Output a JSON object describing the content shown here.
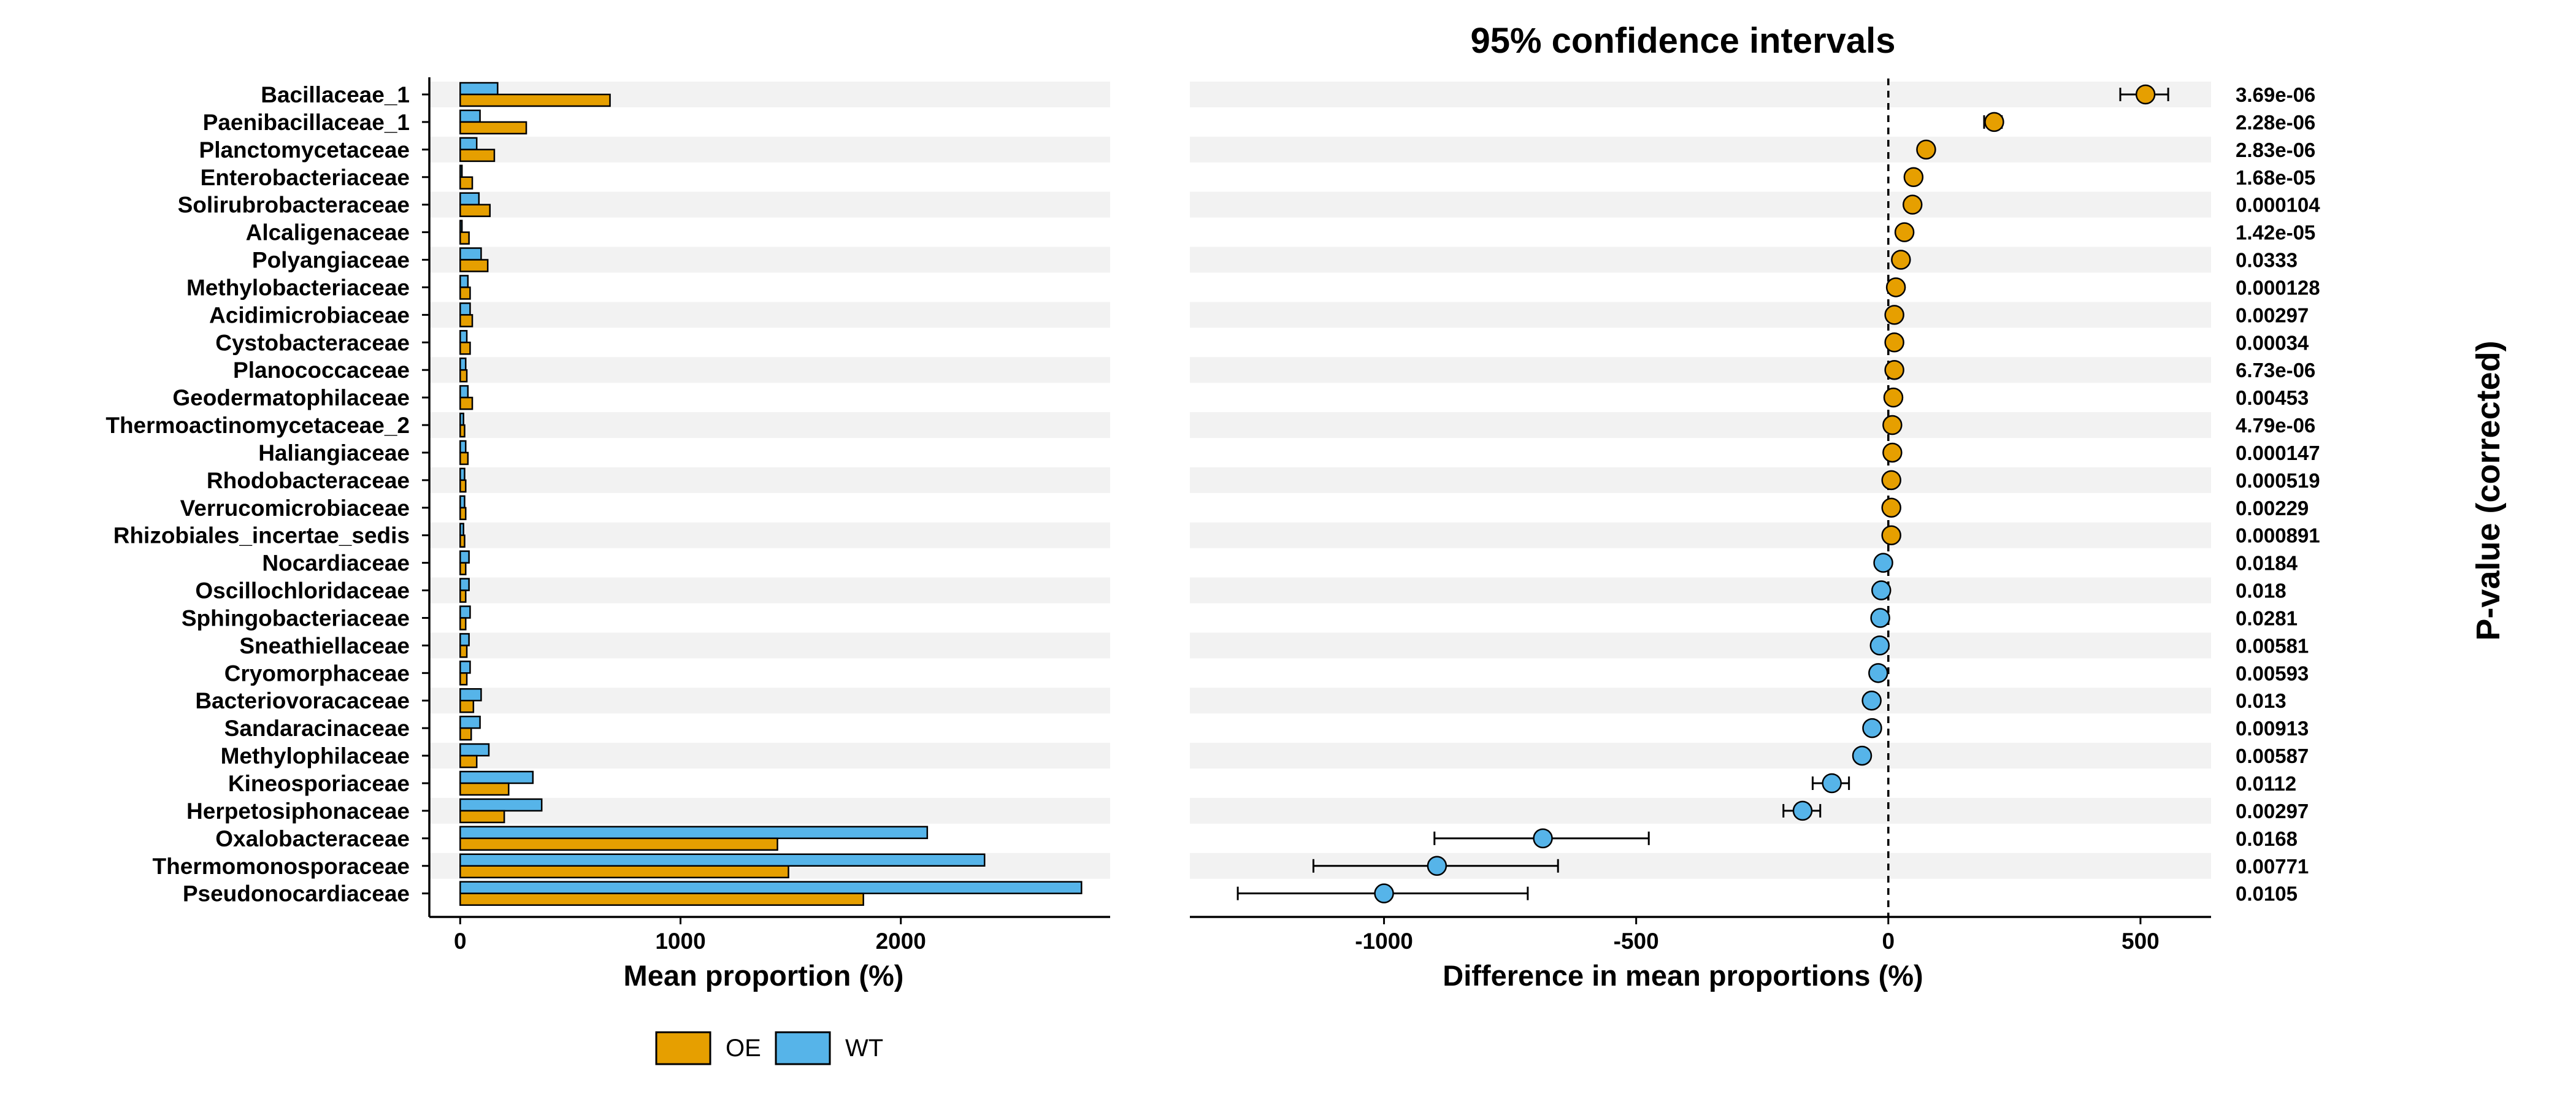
{
  "chart_data": [
    {
      "type": "bar",
      "orientation": "horizontal",
      "categories": [
        "Bacillaceae_1",
        "Paenibacillaceae_1",
        "Planctomycetaceae",
        "Enterobacteriaceae",
        "Solirubrobacteraceae",
        "Alcaligenaceae",
        "Polyangiaceae",
        "Methylobacteriaceae",
        "Acidimicrobiaceae",
        "Cystobacteraceae",
        "Planococcaceae",
        "Geodermatophilaceae",
        "Thermoactinomycetaceae_2",
        "Haliangiaceae",
        "Rhodobacteraceae",
        "Verrucomicrobiaceae",
        "Rhizobiales_incertae_sedis",
        "Nocardiaceae",
        "Oscillochloridaceae",
        "Sphingobacteriaceae",
        "Sneathiellaceae",
        "Cryomorphaceae",
        "Bacteriovoracaceae",
        "Sandaracinaceae",
        "Methylophilaceae",
        "Kineosporiaceae",
        "Herpetosiphonaceae",
        "Oxalobacteraceae",
        "Thermomonosporaceae",
        "Pseudonocardiaceae"
      ],
      "series": [
        {
          "name": "WT",
          "color": "#56B4E9",
          "values": [
            170,
            90,
            75,
            8,
            85,
            8,
            95,
            35,
            45,
            30,
            25,
            35,
            15,
            25,
            20,
            20,
            15,
            40,
            40,
            45,
            40,
            45,
            95,
            90,
            130,
            330,
            370,
            2120,
            2380,
            2820
          ]
        },
        {
          "name": "OE",
          "color": "#E69F00",
          "values": [
            680,
            300,
            155,
            55,
            135,
            40,
            125,
            45,
            55,
            45,
            30,
            55,
            20,
            35,
            25,
            25,
            20,
            25,
            25,
            25,
            30,
            30,
            60,
            50,
            75,
            220,
            200,
            1440,
            1490,
            1830
          ]
        }
      ],
      "xlabel": "Mean proportion (%)",
      "xticks": [
        0,
        1000,
        2000
      ],
      "xlim": [
        -140,
        2950
      ],
      "legend": {
        "position": "bottom",
        "entries": [
          {
            "name": "OE",
            "color": "#E69F00"
          },
          {
            "name": "WT",
            "color": "#56B4E9"
          }
        ]
      }
    },
    {
      "type": "scatter",
      "title": "95% confidence intervals",
      "xlabel": "Difference in mean proportions (%)",
      "xticks": [
        -1000,
        -500,
        0,
        500
      ],
      "xlim": [
        -1385,
        640
      ],
      "zero_line": true,
      "points": [
        {
          "category": "Bacillaceae_1",
          "diff": 510,
          "ci": [
            460,
            555
          ],
          "color": "#E69F00"
        },
        {
          "category": "Paenibacillaceae_1",
          "diff": 210,
          "ci": [
            190,
            225
          ],
          "color": "#E69F00"
        },
        {
          "category": "Planctomycetaceae",
          "diff": 75,
          "ci": [
            68,
            82
          ],
          "color": "#E69F00"
        },
        {
          "category": "Enterobacteriaceae",
          "diff": 50,
          "ci": [
            44,
            56
          ],
          "color": "#E69F00"
        },
        {
          "category": "Solirubrobacteraceae",
          "diff": 48,
          "ci": [
            40,
            56
          ],
          "color": "#E69F00"
        },
        {
          "category": "Alcaligenaceae",
          "diff": 32,
          "ci": [
            27,
            37
          ],
          "color": "#E69F00"
        },
        {
          "category": "Polyangiaceae",
          "diff": 25,
          "ci": [
            18,
            32
          ],
          "color": "#E69F00"
        },
        {
          "category": "Methylobacteriaceae",
          "diff": 15,
          "ci": [
            10,
            20
          ],
          "color": "#E69F00"
        },
        {
          "category": "Acidimicrobiaceae",
          "diff": 12,
          "ci": [
            7,
            17
          ],
          "color": "#E69F00"
        },
        {
          "category": "Cystobacteraceae",
          "diff": 12,
          "ci": [
            7,
            17
          ],
          "color": "#E69F00"
        },
        {
          "category": "Planococcaceae",
          "diff": 12,
          "ci": [
            7,
            17
          ],
          "color": "#E69F00"
        },
        {
          "category": "Geodermatophilaceae",
          "diff": 10,
          "ci": [
            5,
            15
          ],
          "color": "#E69F00"
        },
        {
          "category": "Thermoactinomycetaceae_2",
          "diff": 8,
          "ci": [
            4,
            12
          ],
          "color": "#E69F00"
        },
        {
          "category": "Haliangiaceae",
          "diff": 8,
          "ci": [
            4,
            12
          ],
          "color": "#E69F00"
        },
        {
          "category": "Rhodobacteraceae",
          "diff": 6,
          "ci": [
            2,
            10
          ],
          "color": "#E69F00"
        },
        {
          "category": "Verrucomicrobiaceae",
          "diff": 6,
          "ci": [
            2,
            10
          ],
          "color": "#E69F00"
        },
        {
          "category": "Rhizobiales_incertae_sedis",
          "diff": 6,
          "ci": [
            2,
            10
          ],
          "color": "#E69F00"
        },
        {
          "category": "Nocardiaceae",
          "diff": -10,
          "ci": [
            -15,
            -5
          ],
          "color": "#56B4E9"
        },
        {
          "category": "Oscillochloridaceae",
          "diff": -14,
          "ci": [
            -19,
            -9
          ],
          "color": "#56B4E9"
        },
        {
          "category": "Sphingobacteriaceae",
          "diff": -16,
          "ci": [
            -22,
            -10
          ],
          "color": "#56B4E9"
        },
        {
          "category": "Sneathiellaceae",
          "diff": -17,
          "ci": [
            -23,
            -11
          ],
          "color": "#56B4E9"
        },
        {
          "category": "Cryomorphaceae",
          "diff": -20,
          "ci": [
            -27,
            -13
          ],
          "color": "#56B4E9"
        },
        {
          "category": "Bacteriovoracaceae",
          "diff": -33,
          "ci": [
            -40,
            -26
          ],
          "color": "#56B4E9"
        },
        {
          "category": "Sandaracinaceae",
          "diff": -32,
          "ci": [
            -40,
            -24
          ],
          "color": "#56B4E9"
        },
        {
          "category": "Methylophilaceae",
          "diff": -52,
          "ci": [
            -60,
            -44
          ],
          "color": "#56B4E9"
        },
        {
          "category": "Kineosporiaceae",
          "diff": -112,
          "ci": [
            -150,
            -78
          ],
          "color": "#56B4E9"
        },
        {
          "category": "Herpetosiphonaceae",
          "diff": -170,
          "ci": [
            -208,
            -135
          ],
          "color": "#56B4E9"
        },
        {
          "category": "Oxalobacteraceae",
          "diff": -685,
          "ci": [
            -900,
            -475
          ],
          "color": "#56B4E9"
        },
        {
          "category": "Thermomonosporaceae",
          "diff": -895,
          "ci": [
            -1140,
            -655
          ],
          "color": "#56B4E9"
        },
        {
          "category": "Pseudonocardiaceae",
          "diff": -1000,
          "ci": [
            -1290,
            -715
          ],
          "color": "#56B4E9"
        }
      ],
      "p_values": [
        "3.69e-06",
        "2.28e-06",
        "2.83e-06",
        "1.68e-05",
        "0.000104",
        "1.42e-05",
        "0.0333",
        "0.000128",
        "0.00297",
        "0.00034",
        "6.73e-06",
        "0.00453",
        "4.79e-06",
        "0.000147",
        "0.000519",
        "0.00229",
        "0.000891",
        "0.0184",
        "0.018",
        "0.0281",
        "0.00581",
        "0.00593",
        "0.013",
        "0.00913",
        "0.00587",
        "0.0112",
        "0.00297",
        "0.0168",
        "0.00771",
        "0.0105"
      ],
      "p_value_label": "P-value (corrected)"
    }
  ]
}
